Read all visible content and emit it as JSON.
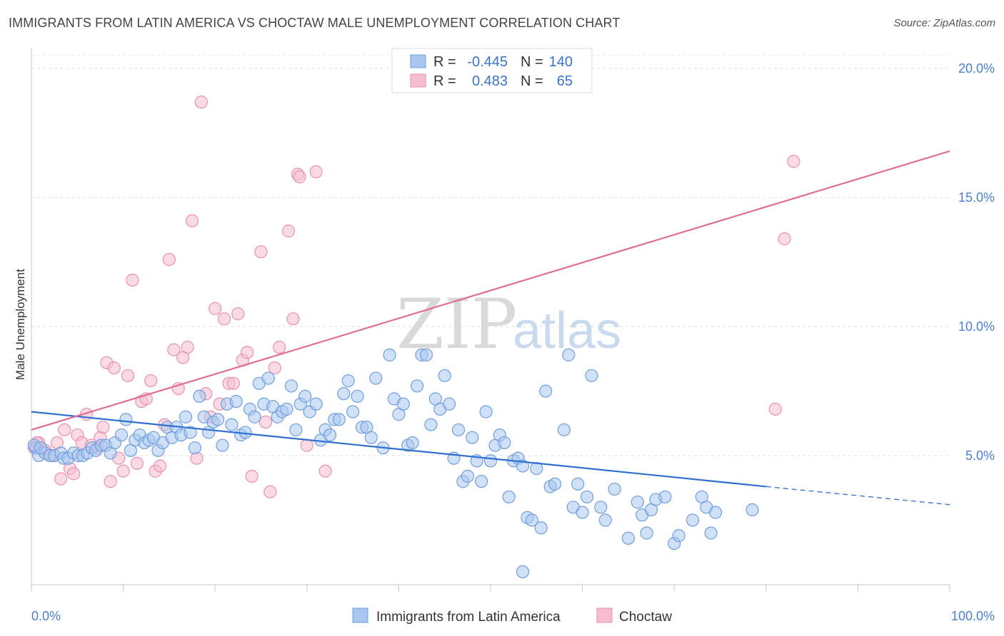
{
  "header": {
    "title": "IMMIGRANTS FROM LATIN AMERICA VS CHOCTAW MALE UNEMPLOYMENT CORRELATION CHART",
    "source": "Source: ZipAtlas.com"
  },
  "watermark": {
    "zip": "ZIP",
    "atlas": "atlas"
  },
  "legend": {
    "r_label": "R =",
    "n_label": "N =",
    "rows": [
      {
        "r": "-0.445",
        "n": "140"
      },
      {
        "r": "0.483",
        "n": "65"
      }
    ]
  },
  "colors": {
    "blue_fill": "#a9c6ee",
    "blue_stroke": "#6f9fde",
    "blue_line": "#2f6fcf",
    "pink_fill": "#f6bdd0",
    "pink_stroke": "#ea8fb0",
    "pink_line": "#e06d95"
  },
  "chart_data": {
    "type": "scatter",
    "title": "IMMIGRANTS FROM LATIN AMERICA VS CHOCTAW MALE UNEMPLOYMENT CORRELATION CHART",
    "xlabel": "",
    "ylabel": "Male Unemployment",
    "x_tick_labels": [
      "0.0%",
      "100.0%"
    ],
    "y_tick_labels": [
      "5.0%",
      "10.0%",
      "15.0%",
      "20.0%"
    ],
    "xlim": [
      0,
      100
    ],
    "ylim": [
      0,
      20.5
    ],
    "grid": true,
    "legend_position": "top-center",
    "series": [
      {
        "name": "Immigrants from Latin America",
        "r": -0.445,
        "n": 140,
        "trend": {
          "x": [
            0,
            80
          ],
          "y": [
            6.7,
            3.8
          ],
          "dashed_to": [
            100,
            3.1
          ]
        },
        "points": [
          [
            0.5,
            5.3
          ],
          [
            0.8,
            5.0
          ],
          [
            1.5,
            5.1
          ],
          [
            2.0,
            5.0
          ],
          [
            2.5,
            5.0
          ],
          [
            3.2,
            5.1
          ],
          [
            3.5,
            4.9
          ],
          [
            4.0,
            4.9
          ],
          [
            4.6,
            5.1
          ],
          [
            5.1,
            5.0
          ],
          [
            5.6,
            5.0
          ],
          [
            6.1,
            5.1
          ],
          [
            6.6,
            5.3
          ],
          [
            7.0,
            5.2
          ],
          [
            7.6,
            5.4
          ],
          [
            8.1,
            5.4
          ],
          [
            8.6,
            5.1
          ],
          [
            9.1,
            5.5
          ],
          [
            9.8,
            5.8
          ],
          [
            10.3,
            6.4
          ],
          [
            10.8,
            5.2
          ],
          [
            11.3,
            5.6
          ],
          [
            11.8,
            5.8
          ],
          [
            12.3,
            5.5
          ],
          [
            12.8,
            5.6
          ],
          [
            13.3,
            5.7
          ],
          [
            13.8,
            5.2
          ],
          [
            14.3,
            5.5
          ],
          [
            14.8,
            6.1
          ],
          [
            15.3,
            5.7
          ],
          [
            15.8,
            6.1
          ],
          [
            16.3,
            5.8
          ],
          [
            16.8,
            6.5
          ],
          [
            17.3,
            5.9
          ],
          [
            17.8,
            5.3
          ],
          [
            18.3,
            7.3
          ],
          [
            18.8,
            6.5
          ],
          [
            19.3,
            5.9
          ],
          [
            19.8,
            6.3
          ],
          [
            20.3,
            6.4
          ],
          [
            20.8,
            5.4
          ],
          [
            21.3,
            7.0
          ],
          [
            21.8,
            6.2
          ],
          [
            22.3,
            7.1
          ],
          [
            22.8,
            5.8
          ],
          [
            23.3,
            5.9
          ],
          [
            23.8,
            6.8
          ],
          [
            24.3,
            6.5
          ],
          [
            24.8,
            7.8
          ],
          [
            25.3,
            7.0
          ],
          [
            25.8,
            8.0
          ],
          [
            26.3,
            6.9
          ],
          [
            26.8,
            6.5
          ],
          [
            27.3,
            6.7
          ],
          [
            27.8,
            6.8
          ],
          [
            28.3,
            7.7
          ],
          [
            28.8,
            6.0
          ],
          [
            29.3,
            7.0
          ],
          [
            29.8,
            7.3
          ],
          [
            30.3,
            6.7
          ],
          [
            31.0,
            7.0
          ],
          [
            31.5,
            5.6
          ],
          [
            32.0,
            6.0
          ],
          [
            32.5,
            5.8
          ],
          [
            33.0,
            6.4
          ],
          [
            33.5,
            6.4
          ],
          [
            34.0,
            7.4
          ],
          [
            34.5,
            7.9
          ],
          [
            35.0,
            6.7
          ],
          [
            35.5,
            7.3
          ],
          [
            36.0,
            6.1
          ],
          [
            36.5,
            6.1
          ],
          [
            37.0,
            5.7
          ],
          [
            37.5,
            8.0
          ],
          [
            38.3,
            5.3
          ],
          [
            39.0,
            8.9
          ],
          [
            39.5,
            7.2
          ],
          [
            40.0,
            6.6
          ],
          [
            40.5,
            7.0
          ],
          [
            41.0,
            5.4
          ],
          [
            41.5,
            5.5
          ],
          [
            42.0,
            7.7
          ],
          [
            42.5,
            8.9
          ],
          [
            43.0,
            8.9
          ],
          [
            43.5,
            6.2
          ],
          [
            44.0,
            7.2
          ],
          [
            44.5,
            6.8
          ],
          [
            45.0,
            8.1
          ],
          [
            45.5,
            7.0
          ],
          [
            46.0,
            4.9
          ],
          [
            46.5,
            6.0
          ],
          [
            47.0,
            4.0
          ],
          [
            47.5,
            4.2
          ],
          [
            48.0,
            5.7
          ],
          [
            48.5,
            4.8
          ],
          [
            49.0,
            4.0
          ],
          [
            49.5,
            6.7
          ],
          [
            50.0,
            4.8
          ],
          [
            50.5,
            5.4
          ],
          [
            51.0,
            5.8
          ],
          [
            51.5,
            5.5
          ],
          [
            52.0,
            3.4
          ],
          [
            52.5,
            4.8
          ],
          [
            53.0,
            4.9
          ],
          [
            53.5,
            4.6
          ],
          [
            54.0,
            2.6
          ],
          [
            54.5,
            2.5
          ],
          [
            55.0,
            4.5
          ],
          [
            55.5,
            2.2
          ],
          [
            56.0,
            7.5
          ],
          [
            56.5,
            3.8
          ],
          [
            57.0,
            3.9
          ],
          [
            58.0,
            6.0
          ],
          [
            58.5,
            8.9
          ],
          [
            59.0,
            3.0
          ],
          [
            59.5,
            3.9
          ],
          [
            60.0,
            2.8
          ],
          [
            60.5,
            3.4
          ],
          [
            61.0,
            8.1
          ],
          [
            62.0,
            3.0
          ],
          [
            62.5,
            2.5
          ],
          [
            63.5,
            3.7
          ],
          [
            65.0,
            1.8
          ],
          [
            66.0,
            3.2
          ],
          [
            66.5,
            2.7
          ],
          [
            67.0,
            2.0
          ],
          [
            67.5,
            2.9
          ],
          [
            68.0,
            3.3
          ],
          [
            69.0,
            3.4
          ],
          [
            70.0,
            1.6
          ],
          [
            70.5,
            1.9
          ],
          [
            72.0,
            2.5
          ],
          [
            73.0,
            3.4
          ],
          [
            73.5,
            3.0
          ],
          [
            74.0,
            2.0
          ],
          [
            74.5,
            2.8
          ],
          [
            78.5,
            2.9
          ],
          [
            53.5,
            0.5
          ],
          [
            0.3,
            5.4
          ],
          [
            1.0,
            5.3
          ]
        ]
      },
      {
        "name": "Choctaw",
        "r": 0.483,
        "n": 65,
        "trend": {
          "x": [
            0,
            100
          ],
          "y": [
            6.0,
            16.8
          ]
        },
        "points": [
          [
            0.3,
            5.3
          ],
          [
            0.8,
            5.5
          ],
          [
            1.5,
            5.2
          ],
          [
            2.2,
            5.0
          ],
          [
            2.8,
            5.5
          ],
          [
            3.2,
            4.1
          ],
          [
            3.6,
            6.0
          ],
          [
            4.2,
            4.5
          ],
          [
            4.6,
            4.3
          ],
          [
            5.0,
            5.8
          ],
          [
            5.5,
            5.5
          ],
          [
            6.0,
            6.6
          ],
          [
            6.5,
            5.4
          ],
          [
            7.2,
            5.3
          ],
          [
            7.5,
            5.7
          ],
          [
            7.8,
            6.1
          ],
          [
            8.2,
            8.6
          ],
          [
            8.6,
            4.0
          ],
          [
            9.0,
            8.4
          ],
          [
            9.5,
            4.9
          ],
          [
            10.0,
            4.4
          ],
          [
            10.5,
            8.1
          ],
          [
            11.0,
            11.8
          ],
          [
            11.5,
            4.7
          ],
          [
            12.0,
            7.1
          ],
          [
            12.5,
            7.2
          ],
          [
            13.0,
            7.9
          ],
          [
            13.5,
            4.4
          ],
          [
            14.0,
            4.6
          ],
          [
            14.5,
            6.2
          ],
          [
            15.0,
            12.6
          ],
          [
            15.5,
            9.1
          ],
          [
            16.0,
            7.6
          ],
          [
            16.5,
            8.8
          ],
          [
            17.0,
            9.2
          ],
          [
            17.5,
            14.1
          ],
          [
            18.0,
            4.9
          ],
          [
            18.5,
            18.7
          ],
          [
            19.0,
            7.4
          ],
          [
            19.5,
            6.5
          ],
          [
            20.0,
            10.7
          ],
          [
            20.5,
            7.0
          ],
          [
            21.0,
            10.3
          ],
          [
            21.5,
            7.8
          ],
          [
            22.0,
            7.8
          ],
          [
            22.5,
            10.5
          ],
          [
            23.0,
            8.7
          ],
          [
            23.5,
            9.0
          ],
          [
            24.0,
            4.2
          ],
          [
            25.0,
            12.9
          ],
          [
            25.5,
            6.3
          ],
          [
            26.0,
            3.6
          ],
          [
            26.5,
            8.4
          ],
          [
            27.0,
            9.2
          ],
          [
            28.0,
            13.7
          ],
          [
            28.5,
            10.3
          ],
          [
            29.0,
            15.9
          ],
          [
            29.2,
            15.8
          ],
          [
            30.0,
            5.4
          ],
          [
            31.0,
            16.0
          ],
          [
            32.0,
            4.4
          ],
          [
            81.0,
            6.8
          ],
          [
            82.0,
            13.4
          ],
          [
            83.0,
            16.4
          ],
          [
            0.6,
            5.5
          ]
        ]
      }
    ]
  },
  "bottom_legend": {
    "items": [
      {
        "label": "Immigrants from Latin America"
      },
      {
        "label": "Choctaw"
      }
    ]
  }
}
